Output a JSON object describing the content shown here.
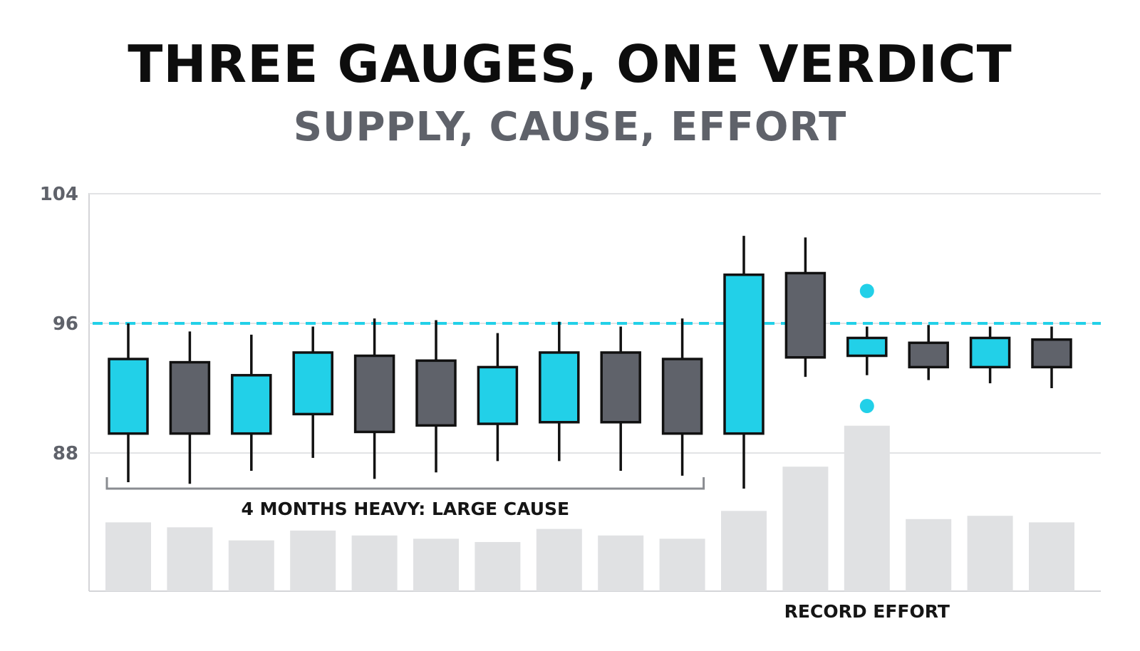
{
  "title": "THREE GAUGES, ONE VERDICT",
  "subtitle": "SUPPLY, CAUSE, EFFORT",
  "colors": {
    "up": "#22d0e8",
    "down": "#5f626a",
    "volume": "#e0e1e3",
    "resistance": "#22d0e8",
    "grid": "#e2e3e5",
    "axis": "#d4d5d8",
    "outline": "#111111"
  },
  "chart_data": {
    "type": "candlestick",
    "ylim": [
      80,
      104
    ],
    "yticks": [
      "104",
      "96",
      "88"
    ],
    "grid": true,
    "resistance_level": 96,
    "candles": [
      {
        "open": 89.2,
        "high": 96.0,
        "low": 86.2,
        "close": 93.8,
        "dir": "up",
        "volume": 42
      },
      {
        "open": 93.6,
        "high": 95.5,
        "low": 86.1,
        "close": 89.2,
        "dir": "down",
        "volume": 39
      },
      {
        "open": 89.2,
        "high": 95.3,
        "low": 86.9,
        "close": 92.8,
        "dir": "up",
        "volume": 31
      },
      {
        "open": 90.4,
        "high": 95.8,
        "low": 87.7,
        "close": 94.2,
        "dir": "up",
        "volume": 37
      },
      {
        "open": 94.0,
        "high": 96.3,
        "low": 86.4,
        "close": 89.3,
        "dir": "down",
        "volume": 34
      },
      {
        "open": 93.7,
        "high": 96.2,
        "low": 86.8,
        "close": 89.7,
        "dir": "down",
        "volume": 32
      },
      {
        "open": 89.8,
        "high": 95.4,
        "low": 87.5,
        "close": 93.3,
        "dir": "up",
        "volume": 30
      },
      {
        "open": 89.9,
        "high": 96.1,
        "low": 87.5,
        "close": 94.2,
        "dir": "up",
        "volume": 38
      },
      {
        "open": 94.2,
        "high": 95.8,
        "low": 86.9,
        "close": 89.9,
        "dir": "down",
        "volume": 34
      },
      {
        "open": 93.8,
        "high": 96.3,
        "low": 86.6,
        "close": 89.2,
        "dir": "down",
        "volume": 32
      },
      {
        "open": 89.2,
        "high": 101.4,
        "low": 85.8,
        "close": 99.0,
        "dir": "up",
        "volume": 49
      },
      {
        "open": 99.1,
        "high": 101.3,
        "low": 92.7,
        "close": 93.9,
        "dir": "down",
        "volume": 76
      },
      {
        "open": 94.0,
        "high": 95.8,
        "low": 92.8,
        "close": 95.1,
        "dir": "up",
        "volume": 101
      },
      {
        "open": 94.8,
        "high": 95.9,
        "low": 92.5,
        "close": 93.3,
        "dir": "down",
        "volume": 44
      },
      {
        "open": 93.3,
        "high": 95.8,
        "low": 92.3,
        "close": 95.1,
        "dir": "up",
        "volume": 46
      },
      {
        "open": 95.0,
        "high": 95.8,
        "low": 92.0,
        "close": 93.3,
        "dir": "down",
        "volume": 42
      }
    ],
    "markers": [
      {
        "candle": 12,
        "price": 98.0
      },
      {
        "candle": 12,
        "price": 90.9
      }
    ],
    "annotations": [
      {
        "text": "4 MONTHS HEAVY: LARGE CAUSE",
        "from_candle": 0,
        "to_candle": 9
      },
      {
        "text": "RECORD EFFORT",
        "candle": 12
      }
    ]
  }
}
